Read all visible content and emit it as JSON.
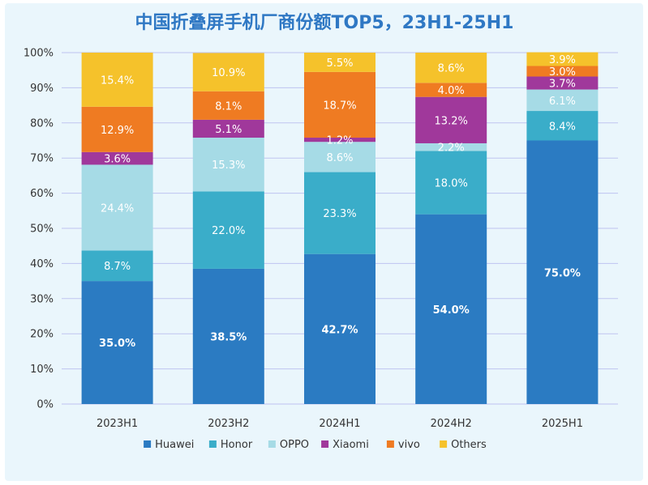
{
  "chart_data": {
    "type": "bar",
    "stacked": true,
    "title": "中国折叠屏手机厂商份额TOP5，23H1-25H1",
    "categories": [
      "2023H1",
      "2023H2",
      "2024H1",
      "2024H2",
      "2025H1"
    ],
    "ylim": [
      0,
      100
    ],
    "yticks": [
      "0%",
      "10%",
      "20%",
      "30%",
      "40%",
      "50%",
      "60%",
      "70%",
      "80%",
      "90%",
      "100%"
    ],
    "grid": true,
    "legend_position": "bottom",
    "series": [
      {
        "name": "Huawei",
        "color": "#2b7bc2",
        "values": [
          35.0,
          38.5,
          42.7,
          54.0,
          75.0
        ],
        "labels": [
          "35.0%",
          "38.5%",
          "42.7%",
          "54.0%",
          "75.0%"
        ],
        "label_color": "#ffffff",
        "label_bold": true
      },
      {
        "name": "Honor",
        "color": "#3aadc9",
        "values": [
          8.7,
          22.0,
          23.3,
          18.0,
          8.4
        ],
        "labels": [
          "8.7%",
          "22.0%",
          "23.3%",
          "18.0%",
          "8.4%"
        ],
        "label_color": "#ffffff",
        "label_bold": false
      },
      {
        "name": "OPPO",
        "color": "#a6dbe6",
        "values": [
          24.4,
          15.3,
          8.6,
          2.2,
          6.1
        ],
        "labels": [
          "24.4%",
          "15.3%",
          "8.6%",
          "2.2%",
          "6.1%"
        ],
        "label_color": "#ffffff",
        "label_bold": false
      },
      {
        "name": "Xiaomi",
        "color": "#a0389b",
        "values": [
          3.6,
          5.1,
          1.2,
          13.2,
          3.7
        ],
        "labels": [
          "3.6%",
          "5.1%",
          "1.2%",
          "13.2%",
          "3.7%"
        ],
        "label_color": "#ffffff",
        "label_bold": false
      },
      {
        "name": "vivo",
        "color": "#ef7b22",
        "values": [
          12.9,
          8.1,
          18.7,
          4.0,
          3.0
        ],
        "labels": [
          "12.9%",
          "8.1%",
          "18.7%",
          "4.0%",
          "3.0%"
        ],
        "label_color": "#ffffff",
        "label_bold": false
      },
      {
        "name": "Others",
        "color": "#f5c22b",
        "values": [
          15.4,
          10.9,
          5.5,
          8.6,
          3.9
        ],
        "labels": [
          "15.4%",
          "10.9%",
          "5.5%",
          "8.6%",
          "3.9%"
        ],
        "label_color": "#ffffff",
        "label_bold": false
      }
    ]
  }
}
